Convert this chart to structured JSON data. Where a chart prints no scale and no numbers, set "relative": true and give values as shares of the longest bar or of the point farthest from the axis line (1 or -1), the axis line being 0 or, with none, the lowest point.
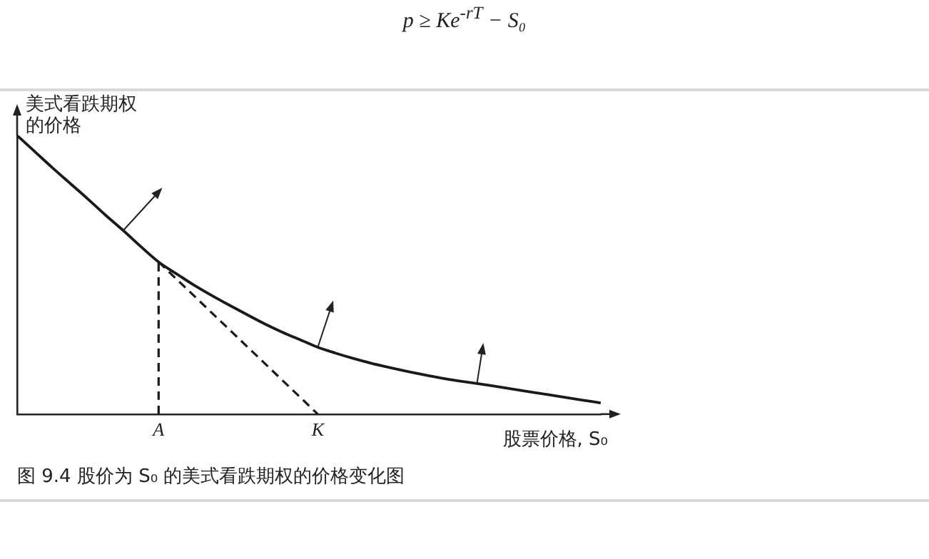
{
  "chart_data": {
    "type": "line",
    "relative": true,
    "title": "图 9.4 股价为 S₀ 的美式看跌期权的价格变化图",
    "ylabel": "美式看跌期权的价格",
    "xlabel": "股票价格, S₀",
    "annotations": [
      "p ≥ Ke$^{-rT}$ − S₀"
    ],
    "categories": [
      null,
      null,
      null,
      null,
      null,
      null,
      null,
      null,
      "A",
      null,
      null,
      null,
      null,
      null,
      null,
      null,
      null,
      "K",
      null,
      null,
      null,
      null,
      null,
      null,
      null,
      null,
      null,
      null,
      null,
      null,
      null,
      null,
      null,
      null
    ],
    "series": [
      {
        "color": "#1a1a1a",
        "line_style": "solid",
        "values": [
          1,
          0.942,
          0.884,
          0.828,
          0.772,
          0.714,
          0.659,
          0.601,
          0.546,
          0.504,
          0.463,
          0.426,
          0.391,
          0.357,
          0.324,
          0.294,
          0.267,
          0.24,
          0.219,
          0.2,
          0.183,
          0.168,
          0.154,
          0.141,
          0.129,
          0.119,
          0.11,
          0.1,
          0.09,
          0.08,
          0.07,
          0.06,
          0.05,
          0.04
        ]
      },
      {
        "color": "#1a1a1a",
        "line_style": "dashed",
        "x": [
          "A",
          "A"
        ],
        "values": [
          0,
          0.546
        ]
      },
      {
        "color": "#1a1a1a",
        "line_style": "dashed",
        "x": [
          "A",
          "K"
        ],
        "values": [
          0.546,
          0
        ]
      }
    ],
    "grid": false,
    "legend": false,
    "marker": "none"
  }
}
